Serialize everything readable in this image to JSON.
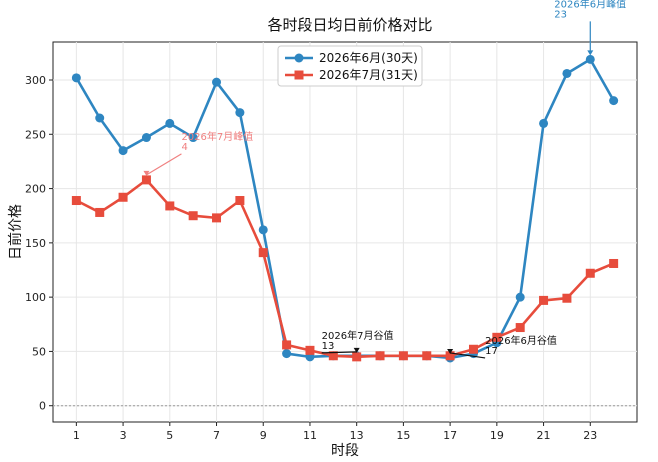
{
  "chart_data": {
    "type": "line",
    "title": "各时段日均日前价格对比",
    "xlabel": "时段",
    "ylabel": "日前价格",
    "x": [
      1,
      2,
      3,
      4,
      5,
      6,
      7,
      8,
      9,
      10,
      11,
      12,
      13,
      14,
      15,
      16,
      17,
      18,
      19,
      20,
      21,
      22,
      23,
      24
    ],
    "xticks": [
      1,
      3,
      5,
      7,
      9,
      11,
      13,
      15,
      17,
      19,
      21,
      23
    ],
    "xlim": [
      0,
      25
    ],
    "yticks": [
      0,
      50,
      100,
      150,
      200,
      250,
      300
    ],
    "ylim": [
      -15,
      335
    ],
    "grid": true,
    "zero_line": true,
    "legend_position": "top-center",
    "series": [
      {
        "name": "2026年6月(30天)",
        "color": "#2e86c1",
        "marker": "circle",
        "values": [
          302,
          265,
          235,
          247,
          260,
          247,
          298,
          270,
          162,
          48,
          45,
          46,
          46,
          46,
          46,
          46,
          44,
          48,
          58,
          100,
          260,
          306,
          319,
          281
        ]
      },
      {
        "name": "2026年7月(31天)",
        "color": "#e74c3c",
        "marker": "square",
        "values": [
          189,
          178,
          192,
          208,
          184,
          175,
          173,
          189,
          141,
          56,
          51,
          46,
          45,
          46,
          46,
          46,
          46,
          52,
          63,
          72,
          97,
          99,
          122,
          131
        ]
      }
    ],
    "annotations": [
      {
        "label": "2026年6月峰值",
        "value_text": "23",
        "color": "#2e86c1",
        "x": 23,
        "y": 319
      },
      {
        "label": "2026年7月峰值",
        "value_text": "4",
        "color": "#f08080",
        "x": 4,
        "y": 208
      },
      {
        "label": "2026年7月谷值",
        "value_text": "13",
        "color": "#111111",
        "x": 13,
        "y": 45
      },
      {
        "label": "2026年6月谷值",
        "value_text": "17",
        "color": "#111111",
        "x": 17,
        "y": 44
      }
    ]
  }
}
